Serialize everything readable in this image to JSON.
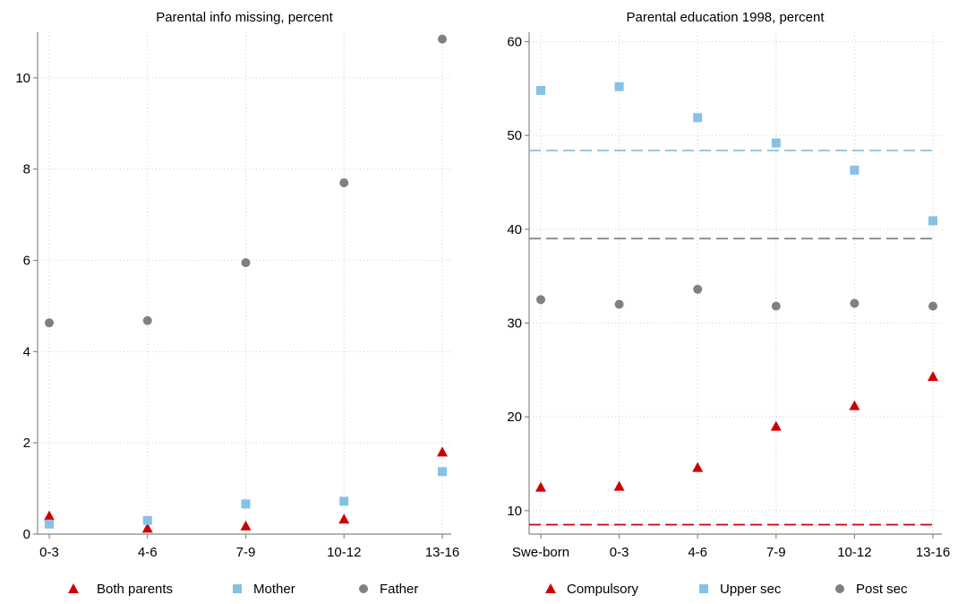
{
  "chart_data": [
    {
      "type": "scatter",
      "title": "Parental info missing, percent",
      "categories": [
        "0-3",
        "4-6",
        "7-9",
        "10-12",
        "13-16"
      ],
      "ylim": [
        0,
        11
      ],
      "yticks": [
        0,
        2,
        4,
        6,
        8,
        10
      ],
      "grid": true,
      "legend_position": "bottom",
      "series": [
        {
          "name": "Both parents",
          "marker": "triangle",
          "color": "#cc0000",
          "values": [
            0.4,
            0.13,
            0.18,
            0.33,
            1.8
          ]
        },
        {
          "name": "Mother",
          "marker": "square",
          "color": "#87c1e6",
          "values": [
            0.22,
            0.3,
            0.66,
            0.72,
            1.37
          ]
        },
        {
          "name": "Father",
          "marker": "circle",
          "color": "#808080",
          "values": [
            4.63,
            4.68,
            5.95,
            7.7,
            10.85
          ]
        }
      ]
    },
    {
      "type": "scatter",
      "title": "Parental education 1998, percent",
      "categories": [
        "Swe-born",
        "0-3",
        "4-6",
        "7-9",
        "10-12",
        "13-16"
      ],
      "ylim": [
        7.5,
        61
      ],
      "yticks": [
        10,
        20,
        30,
        40,
        50,
        60
      ],
      "grid": true,
      "legend_position": "bottom",
      "series": [
        {
          "name": "Compulsory",
          "marker": "triangle",
          "color": "#cc0000",
          "values": [
            12.5,
            12.6,
            14.6,
            19.0,
            21.2,
            24.3
          ],
          "reference_line": 8.5
        },
        {
          "name": "Upper sec",
          "marker": "square",
          "color": "#87c1e6",
          "values": [
            54.8,
            55.2,
            51.9,
            49.2,
            46.3,
            40.9
          ],
          "reference_line": 48.4
        },
        {
          "name": "Post sec",
          "marker": "circle",
          "color": "#808080",
          "values": [
            32.5,
            32.0,
            33.6,
            31.8,
            32.1,
            31.8
          ],
          "reference_line": 39.0
        }
      ]
    }
  ]
}
